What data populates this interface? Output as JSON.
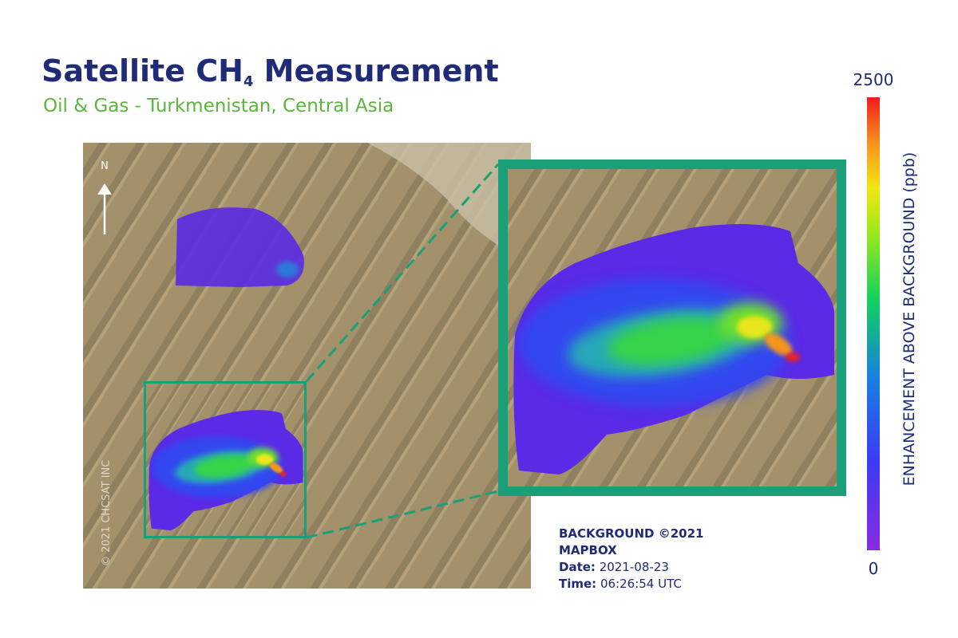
{
  "header": {
    "title_main": "Satellite CH",
    "title_sub": "4",
    "title_end": " Measurement",
    "subtitle": "Oil & Gas - Turkmenistan, Central Asia"
  },
  "map": {
    "north": "N",
    "copyright": "© 2021 CHCSAT INC"
  },
  "colorbar": {
    "label": "ENHANCEMENT ABOVE BACKGROUND (ppb)",
    "max": 2500,
    "min": 0
  },
  "credits": {
    "background": "BACKGROUND ©2021",
    "provider": "MAPBOX",
    "date_label": "Date:",
    "date": "2021-08-23",
    "time_label": "Time:",
    "time": "06:26:54 UTC"
  }
}
